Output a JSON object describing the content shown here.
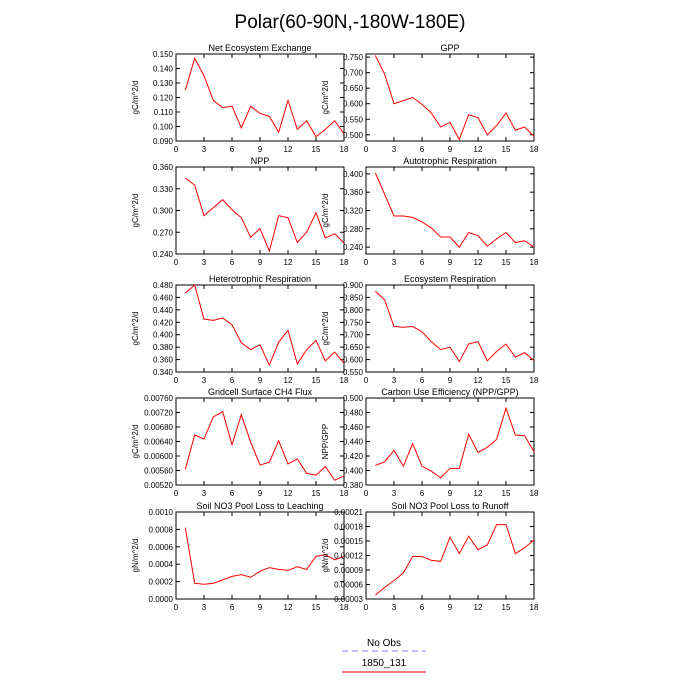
{
  "figure": {
    "title": "Polar(60-90N,-180W-180E)",
    "legend": [
      {
        "label": "No Obs",
        "color": "#8080ff",
        "style": "dashed"
      },
      {
        "label": "1850_131",
        "color": "#ff0000",
        "style": "solid"
      }
    ]
  },
  "chart_data": [
    {
      "type": "line",
      "title": "Net Ecosystem Exchange",
      "xlabel": "",
      "ylabel": "gC/m^2/d",
      "xlim": [
        0,
        18
      ],
      "xticks": [
        0,
        3,
        6,
        9,
        12,
        15,
        18
      ],
      "ylim": [
        0.09,
        0.15
      ],
      "yticks": [
        "0.090",
        "0.100",
        "0.110",
        "0.120",
        "0.130",
        "0.140",
        "0.150"
      ],
      "series": [
        {
          "name": "1850_131",
          "color": "#ff0000",
          "x": [
            1,
            2,
            3,
            4,
            5,
            6,
            7,
            8,
            9,
            10,
            11,
            12,
            13,
            14,
            15,
            16,
            17,
            18
          ],
          "y": [
            0.125,
            0.147,
            0.135,
            0.118,
            0.113,
            0.114,
            0.099,
            0.114,
            0.109,
            0.107,
            0.096,
            0.118,
            0.098,
            0.104,
            0.093,
            0.098,
            0.104,
            0.095
          ]
        }
      ]
    },
    {
      "type": "line",
      "title": "GPP",
      "xlabel": "",
      "ylabel": "gC/m^2/d",
      "xlim": [
        0,
        18
      ],
      "xticks": [
        0,
        3,
        6,
        9,
        12,
        15,
        18
      ],
      "ylim": [
        0.48,
        0.76
      ],
      "yticks": [
        "0.500",
        "0.550",
        "0.600",
        "0.650",
        "0.700",
        "0.750"
      ],
      "series": [
        {
          "name": "1850_131",
          "color": "#ff0000",
          "x": [
            1,
            2,
            3,
            4,
            5,
            6,
            7,
            8,
            9,
            10,
            11,
            12,
            13,
            14,
            15,
            16,
            17,
            18
          ],
          "y": [
            0.755,
            0.695,
            0.6,
            0.61,
            0.62,
            0.598,
            0.57,
            0.525,
            0.54,
            0.485,
            0.565,
            0.555,
            0.5,
            0.53,
            0.57,
            0.515,
            0.525,
            0.495
          ]
        }
      ]
    },
    {
      "type": "line",
      "title": "NPP",
      "xlabel": "",
      "ylabel": "gC/m^2/d",
      "xlim": [
        0,
        18
      ],
      "xticks": [
        0,
        3,
        6,
        9,
        12,
        15,
        18
      ],
      "ylim": [
        0.24,
        0.36
      ],
      "yticks": [
        "0.240",
        "0.270",
        "0.300",
        "0.330",
        "0.360"
      ],
      "series": [
        {
          "name": "1850_131",
          "color": "#ff0000",
          "x": [
            1,
            2,
            3,
            4,
            5,
            6,
            7,
            8,
            9,
            10,
            11,
            12,
            13,
            14,
            15,
            16,
            17,
            18
          ],
          "y": [
            0.345,
            0.335,
            0.293,
            0.304,
            0.315,
            0.301,
            0.29,
            0.263,
            0.275,
            0.244,
            0.293,
            0.29,
            0.256,
            0.27,
            0.297,
            0.262,
            0.268,
            0.255
          ]
        }
      ]
    },
    {
      "type": "line",
      "title": "Autotrophic Respiration",
      "xlabel": "",
      "ylabel": "gC/m^2/d",
      "xlim": [
        0,
        18
      ],
      "xticks": [
        0,
        3,
        6,
        9,
        12,
        15,
        18
      ],
      "ylim": [
        0.225,
        0.415
      ],
      "yticks": [
        "0.240",
        "0.280",
        "0.320",
        "0.360",
        "0.400"
      ],
      "series": [
        {
          "name": "1850_131",
          "color": "#ff0000",
          "x": [
            1,
            2,
            3,
            4,
            5,
            6,
            7,
            8,
            9,
            10,
            11,
            12,
            13,
            14,
            15,
            16,
            17,
            18
          ],
          "y": [
            0.402,
            0.355,
            0.308,
            0.308,
            0.305,
            0.295,
            0.282,
            0.262,
            0.262,
            0.24,
            0.272,
            0.265,
            0.242,
            0.258,
            0.272,
            0.25,
            0.254,
            0.24
          ]
        }
      ]
    },
    {
      "type": "line",
      "title": "Heterotrophic Respiration",
      "xlabel": "",
      "ylabel": "gC/m^2/d",
      "xlim": [
        0,
        18
      ],
      "xticks": [
        0,
        3,
        6,
        9,
        12,
        15,
        18
      ],
      "ylim": [
        0.34,
        0.48
      ],
      "yticks": [
        "0.340",
        "0.360",
        "0.380",
        "0.400",
        "0.420",
        "0.440",
        "0.460",
        "0.480"
      ],
      "series": [
        {
          "name": "1850_131",
          "color": "#ff0000",
          "x": [
            1,
            2,
            3,
            4,
            5,
            6,
            7,
            8,
            9,
            10,
            11,
            12,
            13,
            14,
            15,
            16,
            17,
            18
          ],
          "y": [
            0.467,
            0.48,
            0.425,
            0.423,
            0.427,
            0.416,
            0.387,
            0.376,
            0.384,
            0.351,
            0.388,
            0.407,
            0.353,
            0.376,
            0.391,
            0.358,
            0.372,
            0.354
          ]
        }
      ]
    },
    {
      "type": "line",
      "title": "Ecosystem Respiration",
      "xlabel": "",
      "ylabel": "gC/m^2/d",
      "xlim": [
        0,
        18
      ],
      "xticks": [
        0,
        3,
        6,
        9,
        12,
        15,
        18
      ],
      "ylim": [
        0.55,
        0.9
      ],
      "yticks": [
        "0.550",
        "0.600",
        "0.650",
        "0.700",
        "0.750",
        "0.800",
        "0.850",
        "0.900"
      ],
      "series": [
        {
          "name": "1850_131",
          "color": "#ff0000",
          "x": [
            1,
            2,
            3,
            4,
            5,
            6,
            7,
            8,
            9,
            10,
            11,
            12,
            13,
            14,
            15,
            16,
            17,
            18
          ],
          "y": [
            0.875,
            0.84,
            0.733,
            0.73,
            0.733,
            0.712,
            0.672,
            0.64,
            0.65,
            0.592,
            0.663,
            0.672,
            0.595,
            0.633,
            0.662,
            0.61,
            0.628,
            0.595
          ]
        }
      ]
    },
    {
      "type": "line",
      "title": "Gridcell Surface CH4 Flux",
      "xlabel": "",
      "ylabel": "gC/m^2/d",
      "xlim": [
        0,
        18
      ],
      "xticks": [
        0,
        3,
        6,
        9,
        12,
        15,
        18
      ],
      "ylim": [
        0.0052,
        0.0076
      ],
      "yticks": [
        "0.00520",
        "0.00560",
        "0.00600",
        "0.00640",
        "0.00680",
        "0.00720",
        "0.00760"
      ],
      "series": [
        {
          "name": "1850_131",
          "color": "#ff0000",
          "x": [
            1,
            2,
            3,
            4,
            5,
            6,
            7,
            8,
            9,
            10,
            11,
            12,
            13,
            14,
            15,
            16,
            17,
            18
          ],
          "y": [
            0.00563,
            0.00658,
            0.00647,
            0.00708,
            0.00722,
            0.00631,
            0.00714,
            0.00638,
            0.00575,
            0.00583,
            0.00642,
            0.00578,
            0.00592,
            0.00552,
            0.00547,
            0.00571,
            0.00533,
            0.00545
          ]
        }
      ]
    },
    {
      "type": "line",
      "title": "Carbon Use Efficiency (NPP/GPP)",
      "xlabel": "",
      "ylabel": "NPP/GPP",
      "xlim": [
        0,
        18
      ],
      "xticks": [
        0,
        3,
        6,
        9,
        12,
        15,
        18
      ],
      "ylim": [
        0.38,
        0.5
      ],
      "yticks": [
        "0.380",
        "0.400",
        "0.420",
        "0.440",
        "0.460",
        "0.480",
        "0.500"
      ],
      "series": [
        {
          "name": "1850_131",
          "color": "#ff0000",
          "x": [
            1,
            2,
            3,
            4,
            5,
            6,
            7,
            8,
            9,
            10,
            11,
            12,
            13,
            14,
            15,
            16,
            17,
            18
          ],
          "y": [
            0.407,
            0.412,
            0.428,
            0.406,
            0.437,
            0.406,
            0.399,
            0.39,
            0.403,
            0.403,
            0.45,
            0.425,
            0.432,
            0.443,
            0.486,
            0.449,
            0.448,
            0.426
          ]
        }
      ]
    },
    {
      "type": "line",
      "title": "Soil NO3 Pool Loss to Leaching",
      "xlabel": "",
      "ylabel": "gN/m^2/d",
      "xlim": [
        0,
        18
      ],
      "xticks": [
        0,
        3,
        6,
        9,
        12,
        15,
        18
      ],
      "ylim": [
        0,
        0.001
      ],
      "yticks": [
        "0.0000",
        "0.0002",
        "0.0004",
        "0.0006",
        "0.0008",
        "0.0010"
      ],
      "series": [
        {
          "name": "1850_131",
          "color": "#ff0000",
          "x": [
            1,
            2,
            3,
            4,
            5,
            6,
            7,
            8,
            9,
            10,
            11,
            12,
            13,
            14,
            15,
            16,
            17,
            18
          ],
          "y": [
            0.00082,
            0.00018,
            0.00017,
            0.00018,
            0.00022,
            0.00026,
            0.00028,
            0.00025,
            0.00032,
            0.00036,
            0.00034,
            0.00033,
            0.00037,
            0.00034,
            0.00049,
            0.00051,
            0.00045,
            0.00049
          ]
        }
      ]
    },
    {
      "type": "line",
      "title": "Soil NO3 Pool Loss to Runoff",
      "xlabel": "",
      "ylabel": "gN/m^2/d",
      "xlim": [
        0,
        18
      ],
      "xticks": [
        0,
        3,
        6,
        9,
        12,
        15,
        18
      ],
      "ylim": [
        3e-05,
        0.00021
      ],
      "yticks": [
        "0.00003",
        "0.00006",
        "0.00009",
        "0.00012",
        "0.00015",
        "0.00018",
        "0.00021"
      ],
      "series": [
        {
          "name": "1850_131",
          "color": "#ff0000",
          "x": [
            1,
            2,
            3,
            4,
            5,
            6,
            7,
            8,
            9,
            10,
            11,
            12,
            13,
            14,
            15,
            16,
            17,
            18
          ],
          "y": [
            3.8e-05,
            5.4e-05,
            6.8e-05,
            8.4e-05,
            0.000118,
            0.000118,
            0.00011,
            0.000108,
            0.000158,
            0.000124,
            0.00016,
            0.000132,
            0.000142,
            0.000184,
            0.000184,
            0.000124,
            0.000136,
            0.000152
          ]
        }
      ]
    }
  ]
}
